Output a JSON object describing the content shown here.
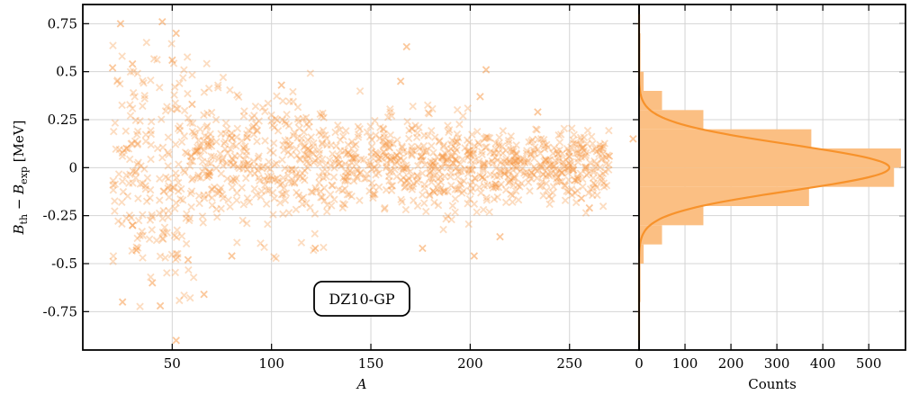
{
  "chart_data": [
    {
      "type": "scatter",
      "marker": "x",
      "color": "#f7923a",
      "xlabel": "A",
      "ylabel_parts": [
        "B",
        "th",
        " − ",
        "B",
        "exp",
        " [MeV]"
      ],
      "xlim": [
        5,
        285
      ],
      "ylim": [
        -0.95,
        0.85
      ],
      "xticks": [
        50,
        100,
        150,
        200,
        250
      ],
      "yticks": [
        0.75,
        0.5,
        0.25,
        0,
        -0.25,
        -0.5,
        -0.75
      ],
      "ytick_labels": [
        "0.75",
        "0.5",
        "0.25",
        "0",
        "-0.25",
        "-0.5",
        "-0.75"
      ],
      "grid": true,
      "annotation": "DZ10-GP",
      "sample_points": [
        [
          24,
          0.75
        ],
        [
          45,
          0.76
        ],
        [
          52,
          0.7
        ],
        [
          50,
          0.56
        ],
        [
          30,
          0.54
        ],
        [
          20,
          0.52
        ],
        [
          52,
          -0.9
        ],
        [
          44,
          -0.72
        ],
        [
          25,
          -0.7
        ],
        [
          66,
          -0.66
        ],
        [
          40,
          -0.6
        ],
        [
          32,
          -0.43
        ],
        [
          30,
          -0.3
        ],
        [
          27,
          0.1
        ],
        [
          60,
          0.33
        ],
        [
          105,
          0.43
        ],
        [
          168,
          0.63
        ],
        [
          165,
          0.45
        ],
        [
          208,
          0.51
        ],
        [
          205,
          0.37
        ],
        [
          234,
          0.29
        ],
        [
          256,
          -0.16
        ],
        [
          260,
          -0.21
        ],
        [
          282,
          0.15
        ],
        [
          270,
          0.06
        ],
        [
          202,
          -0.46
        ],
        [
          122,
          -0.42
        ],
        [
          176,
          -0.42
        ],
        [
          80,
          -0.46
        ],
        [
          58,
          -0.48
        ],
        [
          215,
          -0.36
        ]
      ],
      "density_bands": [
        {
          "x": [
            20,
            60
          ],
          "mean": 0.0,
          "sd": 0.3
        },
        {
          "x": [
            60,
            130
          ],
          "mean": 0.02,
          "sd": 0.17
        },
        {
          "x": [
            130,
            210
          ],
          "mean": 0.02,
          "sd": 0.12
        },
        {
          "x": [
            210,
            270
          ],
          "mean": 0.0,
          "sd": 0.09
        }
      ]
    },
    {
      "type": "bar",
      "orientation": "horizontal",
      "color": "#fbbf83",
      "fit_color": "#f7922b",
      "xlabel": "Counts",
      "xlim": [
        0,
        580
      ],
      "xticks": [
        0,
        100,
        200,
        300,
        400,
        500
      ],
      "bins": [
        {
          "y0": -0.9,
          "y1": -0.8,
          "count": 1
        },
        {
          "y0": -0.8,
          "y1": -0.7,
          "count": 1
        },
        {
          "y0": -0.7,
          "y1": -0.6,
          "count": 3
        },
        {
          "y0": -0.6,
          "y1": -0.5,
          "count": 3
        },
        {
          "y0": -0.5,
          "y1": -0.4,
          "count": 10
        },
        {
          "y0": -0.4,
          "y1": -0.3,
          "count": 50
        },
        {
          "y0": -0.3,
          "y1": -0.2,
          "count": 140
        },
        {
          "y0": -0.2,
          "y1": -0.1,
          "count": 370
        },
        {
          "y0": -0.1,
          "y1": 0.0,
          "count": 555
        },
        {
          "y0": 0.0,
          "y1": 0.1,
          "count": 570
        },
        {
          "y0": 0.1,
          "y1": 0.2,
          "count": 375
        },
        {
          "y0": 0.2,
          "y1": 0.3,
          "count": 140
        },
        {
          "y0": 0.3,
          "y1": 0.4,
          "count": 50
        },
        {
          "y0": 0.4,
          "y1": 0.5,
          "count": 10
        },
        {
          "y0": 0.5,
          "y1": 0.6,
          "count": 3
        },
        {
          "y0": 0.6,
          "y1": 0.7,
          "count": 3
        },
        {
          "y0": 0.7,
          "y1": 0.8,
          "count": 1
        }
      ],
      "fit": {
        "peak": 545,
        "mean": 0.0,
        "sd": 0.12
      }
    }
  ]
}
